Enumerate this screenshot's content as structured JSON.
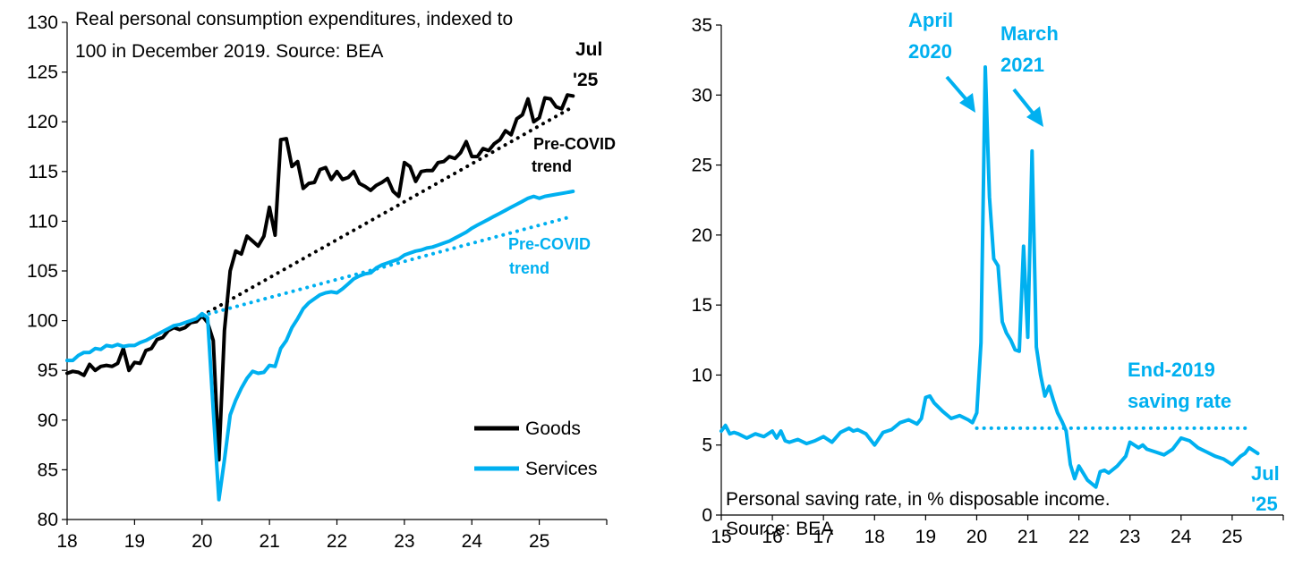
{
  "colors": {
    "goods": "#000000",
    "services": "#00b0f0",
    "saving": "#00b0f0",
    "axis": "#000000"
  },
  "chart_data": [
    {
      "type": "line",
      "title": "Real personal consumption expenditures, indexed to 100 in December 2019. Source: BEA",
      "title_lines": [
        "Real personal consumption expenditures, indexed to",
        "100 in December 2019. Source: BEA"
      ],
      "x_ticks": [
        "18",
        "19",
        "20",
        "21",
        "22",
        "23",
        "24",
        "25"
      ],
      "x_range": [
        2018.0,
        2026.0
      ],
      "y_ticks": [
        "80",
        "85",
        "90",
        "95",
        "100",
        "105",
        "110",
        "115",
        "120",
        "125",
        "130"
      ],
      "ylim": [
        80,
        130
      ],
      "grid": false,
      "legend_position": "bottom-right",
      "series": [
        {
          "name": "Goods",
          "style": "solid",
          "x": [
            2018.0,
            2018.083,
            2018.167,
            2018.25,
            2018.333,
            2018.417,
            2018.5,
            2018.583,
            2018.667,
            2018.75,
            2018.833,
            2018.917,
            2019.0,
            2019.083,
            2019.167,
            2019.25,
            2019.333,
            2019.417,
            2019.5,
            2019.583,
            2019.667,
            2019.75,
            2019.833,
            2019.917,
            2020.0,
            2020.083,
            2020.167,
            2020.25,
            2020.333,
            2020.417,
            2020.5,
            2020.583,
            2020.667,
            2020.75,
            2020.833,
            2020.917,
            2021.0,
            2021.083,
            2021.167,
            2021.25,
            2021.333,
            2021.417,
            2021.5,
            2021.583,
            2021.667,
            2021.75,
            2021.833,
            2021.917,
            2022.0,
            2022.083,
            2022.167,
            2022.25,
            2022.333,
            2022.417,
            2022.5,
            2022.583,
            2022.667,
            2022.75,
            2022.833,
            2022.917,
            2023.0,
            2023.083,
            2023.167,
            2023.25,
            2023.333,
            2023.417,
            2023.5,
            2023.583,
            2023.667,
            2023.75,
            2023.833,
            2023.917,
            2024.0,
            2024.083,
            2024.167,
            2024.25,
            2024.333,
            2024.417,
            2024.5,
            2024.583,
            2024.667,
            2024.75,
            2024.833,
            2024.917,
            2025.0,
            2025.083,
            2025.167,
            2025.25,
            2025.333,
            2025.417,
            2025.5
          ],
          "values": [
            94.7,
            94.9,
            94.8,
            94.5,
            95.6,
            95.0,
            95.4,
            95.5,
            95.4,
            95.7,
            97.2,
            95.0,
            95.8,
            95.7,
            97.0,
            97.2,
            98.1,
            98.3,
            99.0,
            99.3,
            99.1,
            99.3,
            99.8,
            99.9,
            100.5,
            99.8,
            98.0,
            86.0,
            99.0,
            105.0,
            107.0,
            106.7,
            108.5,
            108.0,
            107.5,
            108.5,
            111.4,
            108.6,
            118.2,
            118.3,
            115.5,
            116.0,
            113.3,
            113.8,
            113.9,
            115.2,
            115.4,
            114.2,
            115.0,
            114.2,
            114.4,
            115.0,
            113.8,
            113.5,
            113.1,
            113.6,
            113.9,
            114.3,
            113.0,
            112.5,
            115.9,
            115.5,
            114.0,
            115.0,
            115.1,
            115.1,
            115.9,
            116.0,
            116.5,
            116.3,
            116.9,
            118.0,
            116.5,
            116.5,
            117.3,
            117.1,
            117.8,
            118.2,
            119.1,
            118.7,
            120.3,
            120.7,
            122.3,
            120.0,
            120.4,
            122.4,
            122.3,
            121.5,
            121.3,
            122.7,
            122.6
          ]
        },
        {
          "name": "Services",
          "style": "solid",
          "x": [
            2018.0,
            2018.083,
            2018.167,
            2018.25,
            2018.333,
            2018.417,
            2018.5,
            2018.583,
            2018.667,
            2018.75,
            2018.833,
            2018.917,
            2019.0,
            2019.083,
            2019.167,
            2019.25,
            2019.333,
            2019.417,
            2019.5,
            2019.583,
            2019.667,
            2019.75,
            2019.833,
            2019.917,
            2020.0,
            2020.083,
            2020.167,
            2020.25,
            2020.333,
            2020.417,
            2020.5,
            2020.583,
            2020.667,
            2020.75,
            2020.833,
            2020.917,
            2021.0,
            2021.083,
            2021.167,
            2021.25,
            2021.333,
            2021.417,
            2021.5,
            2021.583,
            2021.667,
            2021.75,
            2021.833,
            2021.917,
            2022.0,
            2022.083,
            2022.167,
            2022.25,
            2022.333,
            2022.417,
            2022.5,
            2022.583,
            2022.667,
            2022.75,
            2022.833,
            2022.917,
            2023.0,
            2023.083,
            2023.167,
            2023.25,
            2023.333,
            2023.417,
            2023.5,
            2023.583,
            2023.667,
            2023.75,
            2023.833,
            2023.917,
            2024.0,
            2024.083,
            2024.167,
            2024.25,
            2024.333,
            2024.417,
            2024.5,
            2024.583,
            2024.667,
            2024.75,
            2024.833,
            2024.917,
            2025.0,
            2025.083,
            2025.167,
            2025.25,
            2025.333,
            2025.417,
            2025.5
          ],
          "values": [
            96.0,
            96.0,
            96.5,
            96.8,
            96.8,
            97.2,
            97.1,
            97.5,
            97.4,
            97.6,
            97.4,
            97.5,
            97.5,
            97.8,
            98.0,
            98.3,
            98.6,
            98.9,
            99.2,
            99.5,
            99.6,
            99.8,
            100.0,
            100.2,
            100.7,
            100.3,
            91.0,
            82.0,
            86.0,
            90.5,
            92.0,
            93.2,
            94.2,
            94.9,
            94.7,
            94.8,
            95.5,
            95.4,
            97.2,
            98.0,
            99.3,
            100.2,
            101.2,
            101.8,
            102.2,
            102.6,
            102.8,
            102.9,
            102.8,
            103.2,
            103.7,
            104.2,
            104.5,
            104.7,
            104.8,
            105.3,
            105.6,
            105.8,
            106.0,
            106.2,
            106.6,
            106.8,
            107.0,
            107.1,
            107.3,
            107.4,
            107.6,
            107.8,
            108.0,
            108.3,
            108.6,
            108.9,
            109.3,
            109.6,
            109.9,
            110.2,
            110.5,
            110.8,
            111.1,
            111.4,
            111.7,
            112.0,
            112.3,
            112.5,
            112.3,
            112.5,
            112.6,
            112.7,
            112.8,
            112.9,
            113.0
          ]
        },
        {
          "name": "Pre-COVID trend",
          "style": "dotted",
          "x": [
            2020.0,
            2025.5
          ],
          "values": [
            100.5,
            121.5
          ]
        },
        {
          "name": "Pre-COVID trend",
          "style": "dotted",
          "x": [
            2020.0,
            2025.5
          ],
          "values": [
            100.5,
            110.5
          ]
        }
      ],
      "annotations": [
        {
          "text": "Jul",
          "text2": "'25"
        },
        {
          "text": "Pre-COVID",
          "text2": "trend"
        },
        {
          "text": "Pre-COVID",
          "text2": "trend"
        }
      ],
      "legend": [
        {
          "name": "Goods"
        },
        {
          "name": "Services"
        }
      ]
    },
    {
      "type": "line",
      "title": "Personal saving rate, in % disposable income. Source: BEA",
      "title_lines": [
        "Personal saving rate, in % disposable income.",
        "Source: BEA"
      ],
      "x_ticks": [
        "15",
        "16",
        "17",
        "18",
        "19",
        "20",
        "21",
        "22",
        "23",
        "24",
        "25"
      ],
      "x_range": [
        2015.0,
        2026.0
      ],
      "y_ticks": [
        "0",
        "5",
        "10",
        "15",
        "20",
        "25",
        "30",
        "35"
      ],
      "ylim": [
        0,
        35
      ],
      "grid": false,
      "series": [
        {
          "name": "Personal saving rate",
          "style": "solid",
          "x": [
            2015.0,
            2015.083,
            2015.167,
            2015.25,
            2015.333,
            2015.5,
            2015.667,
            2015.833,
            2016.0,
            2016.083,
            2016.167,
            2016.25,
            2016.333,
            2016.5,
            2016.667,
            2016.833,
            2017.0,
            2017.167,
            2017.333,
            2017.5,
            2017.583,
            2017.667,
            2017.833,
            2018.0,
            2018.167,
            2018.333,
            2018.5,
            2018.667,
            2018.833,
            2018.917,
            2019.0,
            2019.083,
            2019.167,
            2019.333,
            2019.5,
            2019.667,
            2019.833,
            2019.917,
            2020.0,
            2020.083,
            2020.167,
            2020.25,
            2020.333,
            2020.417,
            2020.5,
            2020.583,
            2020.667,
            2020.75,
            2020.833,
            2020.917,
            2021.0,
            2021.083,
            2021.167,
            2021.25,
            2021.333,
            2021.417,
            2021.5,
            2021.583,
            2021.667,
            2021.75,
            2021.833,
            2021.917,
            2022.0,
            2022.167,
            2022.333,
            2022.417,
            2022.5,
            2022.583,
            2022.75,
            2022.917,
            2023.0,
            2023.167,
            2023.25,
            2023.333,
            2023.5,
            2023.667,
            2023.833,
            2024.0,
            2024.167,
            2024.333,
            2024.5,
            2024.667,
            2024.833,
            2025.0,
            2025.167,
            2025.25,
            2025.333,
            2025.5
          ],
          "values": [
            6.0,
            6.4,
            5.8,
            5.9,
            5.8,
            5.5,
            5.8,
            5.6,
            6.0,
            5.5,
            6.0,
            5.3,
            5.2,
            5.4,
            5.1,
            5.3,
            5.6,
            5.2,
            5.9,
            6.2,
            6.0,
            6.1,
            5.8,
            5.0,
            5.9,
            6.1,
            6.6,
            6.8,
            6.5,
            6.9,
            8.4,
            8.5,
            8.0,
            7.4,
            6.9,
            7.1,
            6.8,
            6.6,
            7.3,
            12.3,
            32.0,
            22.7,
            18.3,
            17.8,
            13.8,
            13.0,
            12.5,
            11.8,
            11.7,
            19.2,
            12.7,
            26.0,
            12.0,
            10.0,
            8.5,
            9.2,
            8.2,
            7.3,
            6.7,
            6.0,
            3.6,
            2.6,
            3.5,
            2.5,
            2.0,
            3.1,
            3.2,
            3.0,
            3.5,
            4.2,
            5.2,
            4.8,
            5.0,
            4.7,
            4.5,
            4.3,
            4.7,
            5.5,
            5.3,
            4.8,
            4.5,
            4.2,
            4.0,
            3.6,
            4.2,
            4.4,
            4.8,
            4.4
          ]
        },
        {
          "name": "End-2019 saving rate",
          "style": "dotted",
          "x": [
            2020.0,
            2025.3
          ],
          "values": [
            6.2,
            6.2
          ]
        }
      ],
      "annotations": [
        {
          "text": "April",
          "text2": "2020"
        },
        {
          "text": "March",
          "text2": "2021"
        },
        {
          "text": "End-2019",
          "text2": "saving rate"
        },
        {
          "text": "Jul",
          "text2": "'25"
        }
      ]
    }
  ]
}
